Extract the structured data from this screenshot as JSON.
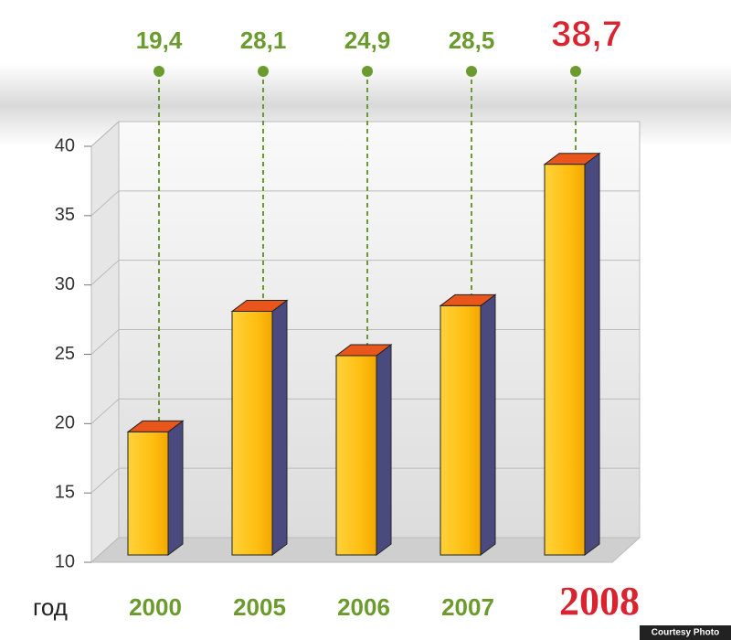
{
  "chart_data": {
    "type": "bar3d",
    "categories": [
      "2000",
      "2005",
      "2006",
      "2007",
      "2008"
    ],
    "values": [
      19.4,
      28.1,
      24.9,
      28.5,
      38.7
    ],
    "value_labels": [
      "19,4",
      "28,1",
      "24,9",
      "28,5",
      "38,7"
    ],
    "label_colors": [
      "#6b9b2e",
      "#6b9b2e",
      "#6b9b2e",
      "#6b9b2e",
      "#d9232e"
    ],
    "x_label": "год",
    "ylim": [
      10,
      40
    ],
    "yticks": [
      10,
      15,
      20,
      25,
      30,
      35,
      40
    ],
    "grid": true,
    "colors": {
      "front": "#ffbe12",
      "side": "#4b4a7e",
      "top": "#e9561c"
    },
    "credit": "Courtesy Photo"
  }
}
